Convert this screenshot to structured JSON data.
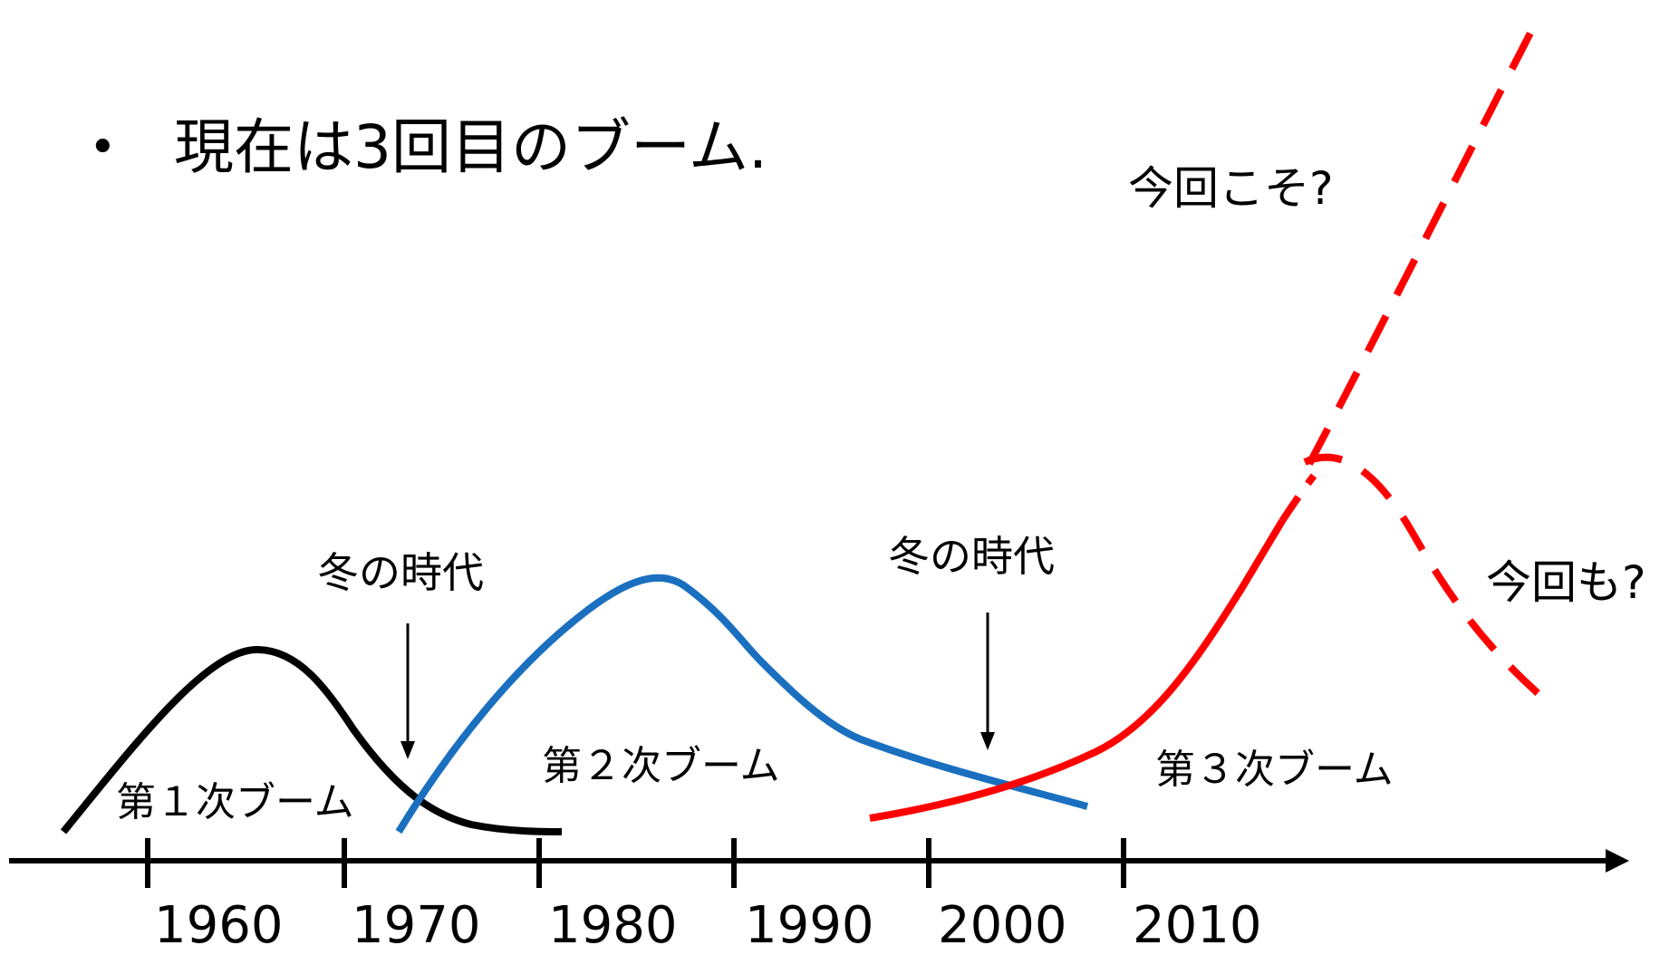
{
  "bullet": {
    "symbol": "•",
    "text": "現在は3回目のブーム."
  },
  "colors": {
    "first_boom": "#000000",
    "second_boom": "#1a6fbf",
    "third_boom": "#ff0000",
    "axis": "#000000"
  },
  "timeline": {
    "ticks": [
      "1960",
      "1970",
      "1980",
      "1990",
      "2000",
      "2010"
    ]
  },
  "booms": [
    {
      "label": "第１次ブーム"
    },
    {
      "label": "第２次ブーム"
    },
    {
      "label": "第３次ブーム"
    }
  ],
  "winters": [
    {
      "label": "冬の時代"
    },
    {
      "label": "冬の時代"
    }
  ],
  "futures": {
    "rise": "今回こそ?",
    "fall": "今回も?"
  }
}
